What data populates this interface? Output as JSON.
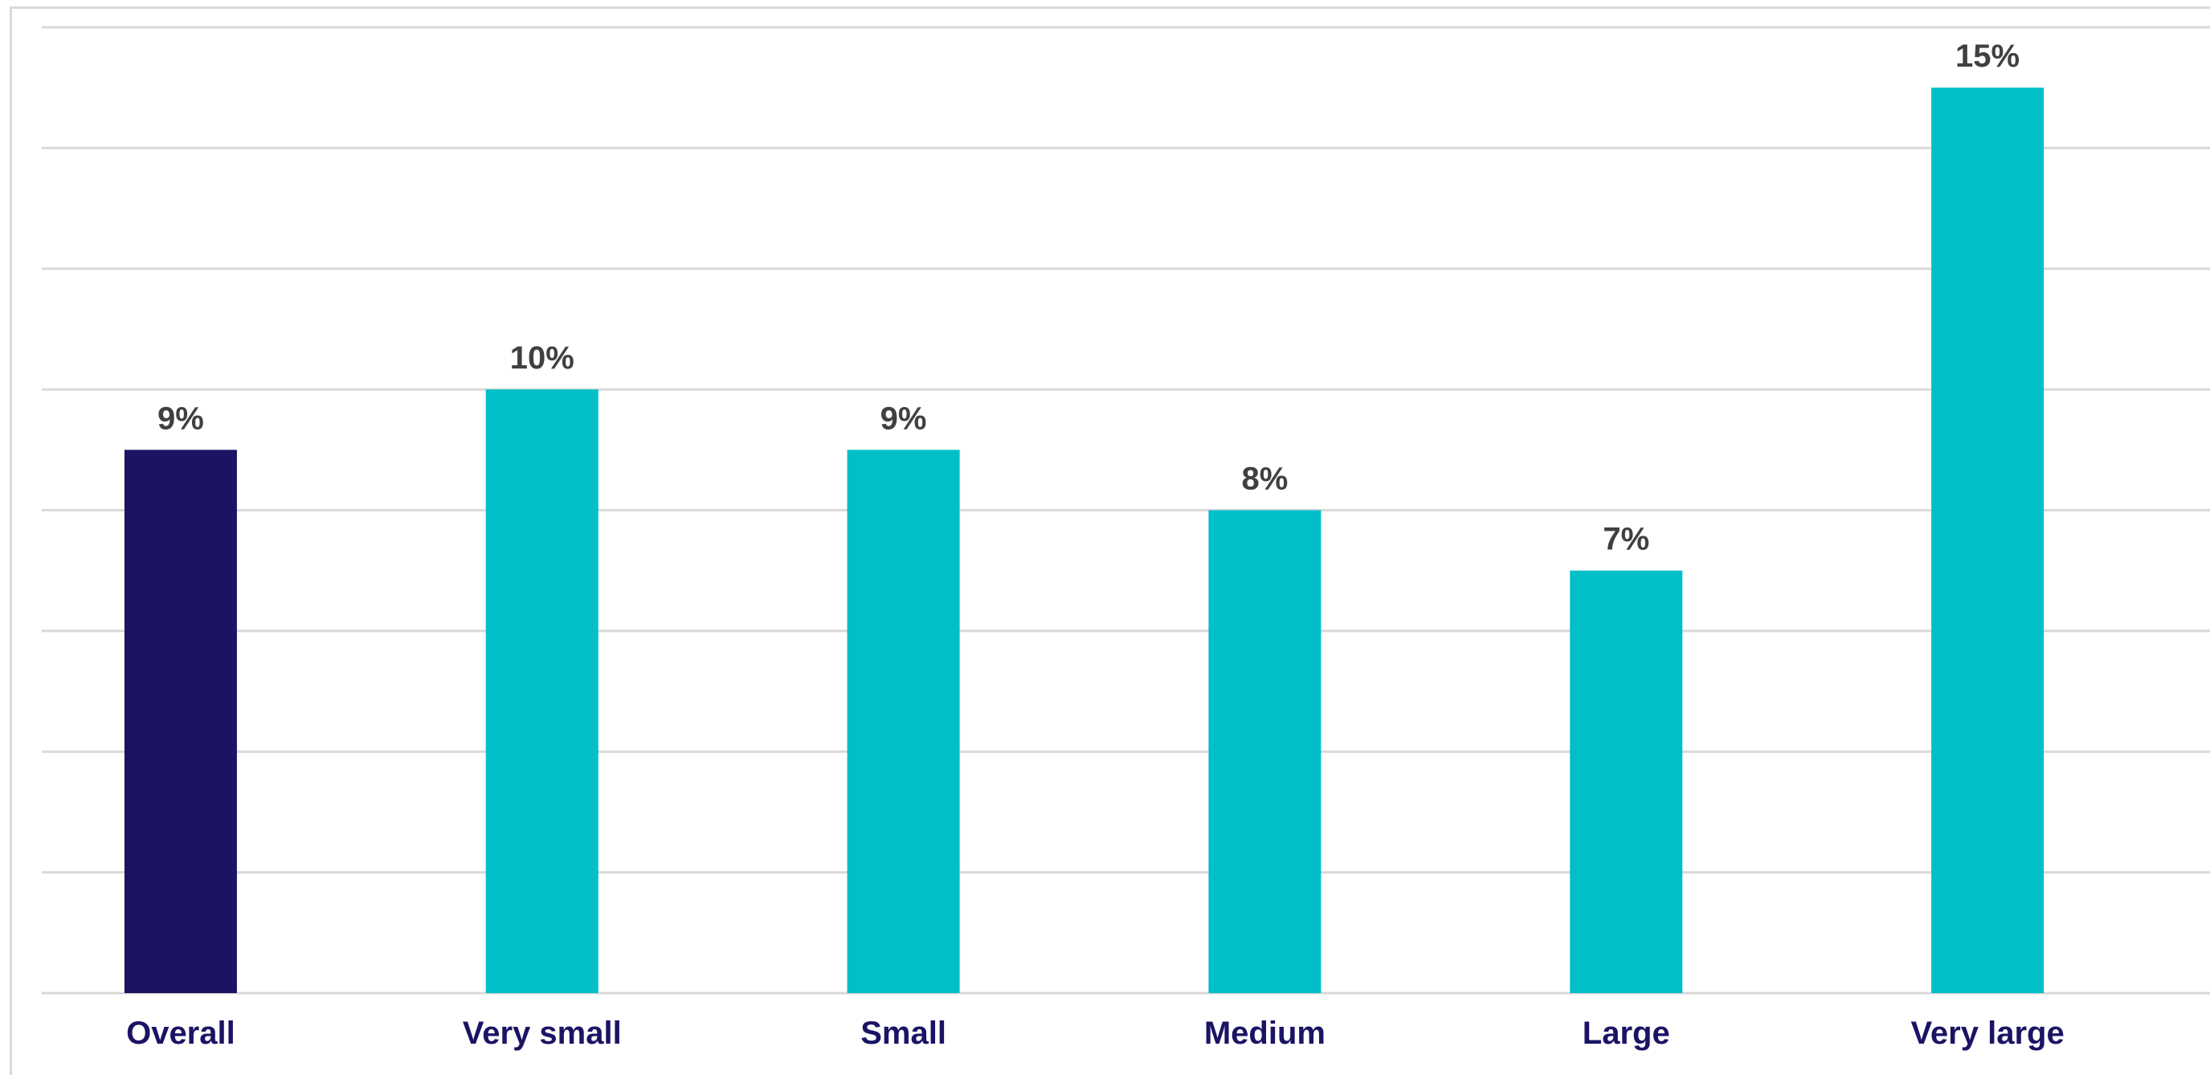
{
  "chart_data": {
    "type": "bar",
    "title": "",
    "xlabel": "",
    "ylabel": "",
    "categories": [
      "Overall",
      "Very small",
      "Small",
      "Medium",
      "Large",
      "Very large"
    ],
    "values": [
      9,
      10,
      9,
      8,
      7,
      15
    ],
    "data_labels": [
      "9%",
      "10%",
      "9%",
      "8%",
      "7%",
      "15%"
    ],
    "unit": "%",
    "ylim": [
      0,
      16
    ],
    "grid_step": 2,
    "grid": true,
    "legend": "none",
    "y_tick_labels_shown": false,
    "colors": {
      "highlight": "#1b1464",
      "default": "#00bfc8",
      "grid": "#d9d9d9",
      "category_label": "#1b1464",
      "data_label": "#404040"
    },
    "highlight_index": 0
  }
}
